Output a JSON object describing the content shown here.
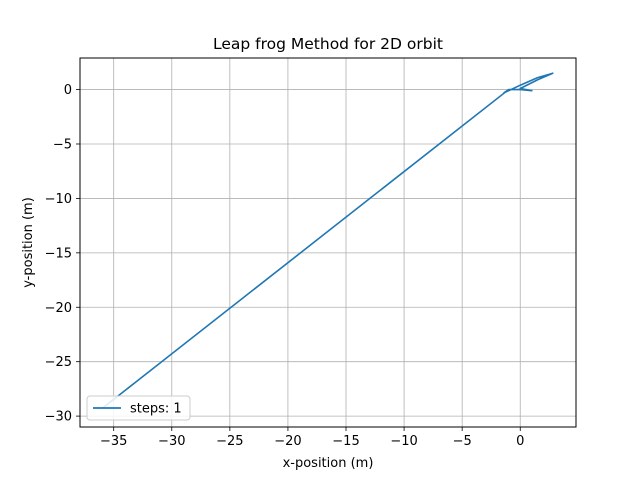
{
  "chart_data": {
    "type": "line",
    "title": "Leap frog Method for 2D orbit",
    "xlabel": "x-position (m)",
    "ylabel": "y-position (m)",
    "xlim": [
      -37.9,
      4.8
    ],
    "ylim": [
      -31.0,
      2.9
    ],
    "xticks": [
      -35,
      -30,
      -25,
      -20,
      -15,
      -10,
      -5,
      0
    ],
    "yticks": [
      0,
      -5,
      -10,
      -15,
      -20,
      -25,
      -30
    ],
    "grid": true,
    "legend_position": "lower-left",
    "colors": {
      "series": "#1f77b4",
      "grid": "#b0b0b0"
    },
    "series": [
      {
        "name": "steps: 1",
        "x": [
          -36.0,
          -1.0,
          -1.4,
          0.0,
          1.5,
          2.8,
          1.5,
          0.0,
          1.0,
          0.0,
          -1.0
        ],
        "y": [
          -29.3,
          0.0,
          -0.3,
          0.4,
          1.1,
          1.5,
          0.9,
          0.1,
          -0.1,
          0.0,
          0.0
        ]
      }
    ]
  }
}
